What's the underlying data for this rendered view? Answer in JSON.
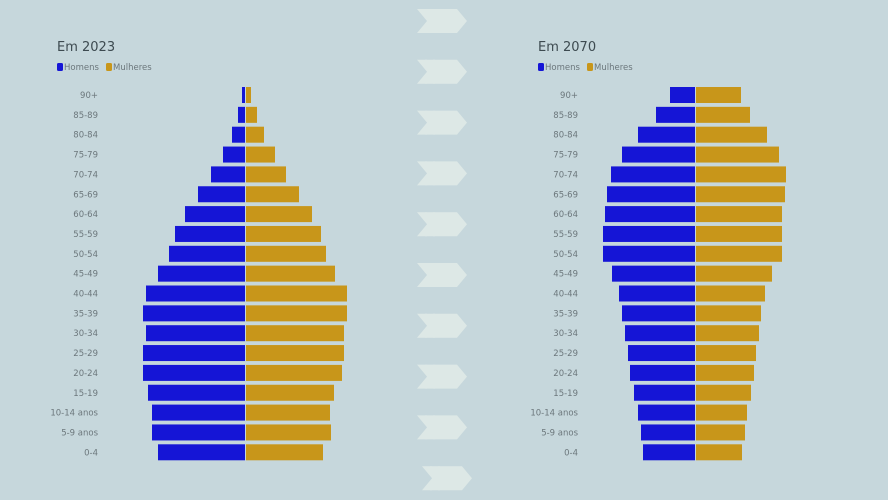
{
  "colors": {
    "background": "#c6d7dc",
    "men": "#1515d6",
    "women": "#c8961a",
    "arrows": "#dde8e6"
  },
  "decoration": {
    "icon": "chevron-arrows-icon",
    "count": 10
  },
  "chart_data": [
    {
      "type": "bar",
      "orientation": "horizontal-pyramid",
      "title": "Em 2023",
      "legend_placement": "top-left",
      "grid": false,
      "categories": [
        "90+",
        "85-89",
        "80-84",
        "75-79",
        "70-74",
        "65-69",
        "60-64",
        "55-59",
        "50-54",
        "45-49",
        "40-44",
        "35-39",
        "30-34",
        "25-29",
        "20-24",
        "15-19",
        "10-14 anos",
        "5-9 anos",
        "0-4"
      ],
      "series": [
        {
          "name": "Homens",
          "values": [
            3,
            7,
            13,
            22,
            34,
            47,
            60,
            70,
            76,
            87,
            99,
            102,
            99,
            102,
            102,
            97,
            93,
            93,
            87
          ]
        },
        {
          "name": "Mulheres",
          "values": [
            5,
            11,
            18,
            29,
            40,
            53,
            66,
            75,
            80,
            89,
            101,
            101,
            98,
            98,
            96,
            88,
            84,
            85,
            77
          ]
        }
      ]
    },
    {
      "type": "bar",
      "orientation": "horizontal-pyramid",
      "title": "Em 2070",
      "legend_placement": "top-left",
      "grid": false,
      "categories": [
        "90+",
        "85-89",
        "80-84",
        "75-79",
        "70-74",
        "65-69",
        "60-64",
        "55-59",
        "50-54",
        "45-49",
        "40-44",
        "35-39",
        "30-34",
        "25-29",
        "20-24",
        "15-19",
        "10-14 anos",
        "5-9 anos",
        "0-4"
      ],
      "series": [
        {
          "name": "Homens",
          "values": [
            25,
            39,
            57,
            73,
            84,
            88,
            90,
            92,
            92,
            83,
            76,
            73,
            70,
            67,
            65,
            61,
            57,
            54,
            52
          ]
        },
        {
          "name": "Mulheres",
          "values": [
            45,
            54,
            71,
            83,
            90,
            89,
            86,
            86,
            86,
            76,
            69,
            65,
            63,
            60,
            58,
            55,
            51,
            49,
            46
          ]
        }
      ]
    }
  ]
}
